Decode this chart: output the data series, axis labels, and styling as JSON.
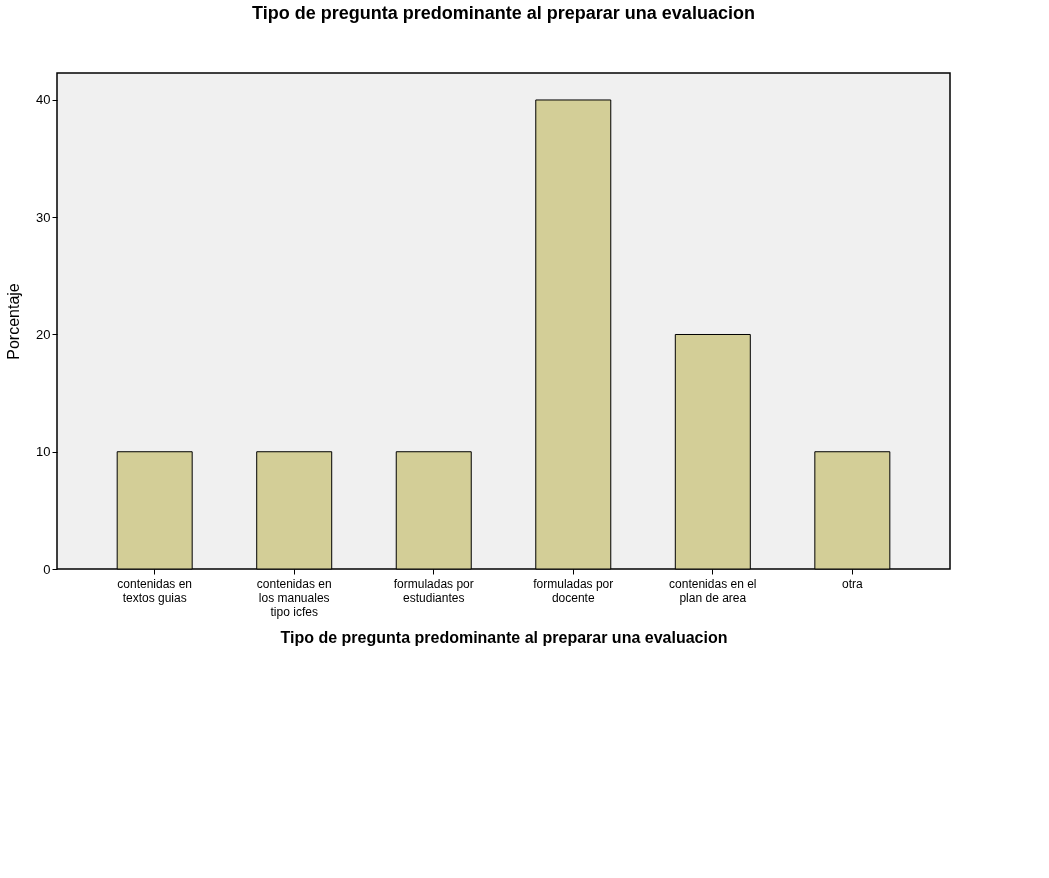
{
  "chart_data": {
    "type": "bar",
    "title": "Tipo de pregunta predominante al preparar una evaluacion",
    "xlabel": "Tipo de pregunta predominante al preparar una evaluacion",
    "ylabel": "Porcentaje",
    "categories": [
      "contenidas en\ntextos guias",
      "contenidas en\nlos manuales\ntipo icfes",
      "formuladas por\nestudiantes",
      "formuladas por\ndocente",
      "contenidas en el\nplan de area",
      "otra"
    ],
    "values": [
      10,
      10,
      10,
      40,
      20,
      10
    ],
    "color": "#d3ce97",
    "ylim": [
      0,
      42.3
    ],
    "yticks": [
      0,
      10,
      20,
      30,
      40
    ],
    "grid": false
  }
}
